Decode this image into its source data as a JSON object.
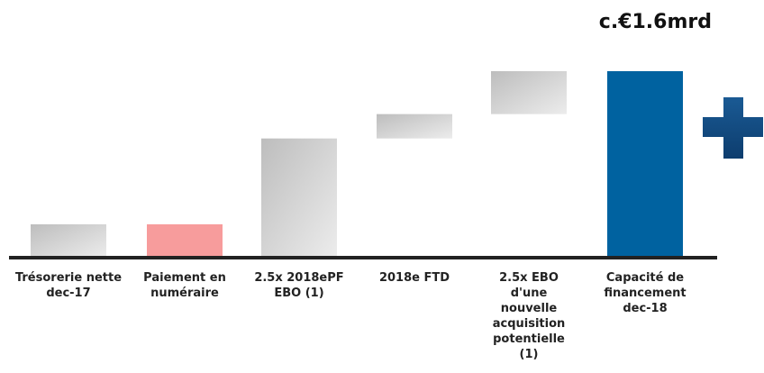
{
  "chart_data": {
    "type": "waterfall",
    "annotation": "c.€1.6mrd",
    "categories": [
      "Trésorerie nette dec-17",
      "Paiement en numéraire",
      "2.5x 2018ePF EBO (1)",
      "2018e FTD",
      "2.5x EBO d'une nouvelle acquisition potentielle (1)",
      "Capacité de financement dec-18"
    ],
    "values": [
      0.28,
      -0.28,
      1.02,
      0.21,
      0.37,
      1.6
    ],
    "measure": [
      "relative",
      "relative",
      "relative",
      "relative",
      "relative",
      "total"
    ],
    "colors": [
      "#c4c4c4",
      "#f79c9c",
      "#c4c4c4",
      "#c4c4c4",
      "#c4c4c4",
      "#0062a0"
    ],
    "ylim": [
      0,
      1.6
    ]
  }
}
